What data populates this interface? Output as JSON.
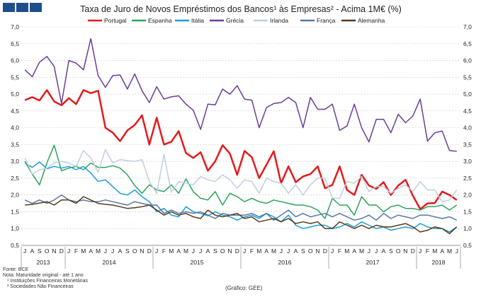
{
  "chart_data": {
    "type": "line",
    "title": "Taxa de Juro de Novos Empréstimos dos Bancos¹ às Empresas² - Acima 1M€ (%)",
    "ylim": [
      0.5,
      7.0
    ],
    "yticks": [
      "0,5",
      "1,0",
      "1,5",
      "2,0",
      "2,5",
      "3,0",
      "3,5",
      "4,0",
      "4,5",
      "5,0",
      "5,5",
      "6,0",
      "6,5",
      "7,0"
    ],
    "x": [
      "J",
      "A",
      "S",
      "O",
      "N",
      "D",
      "J",
      "F",
      "M",
      "A",
      "M",
      "J",
      "J",
      "A",
      "S",
      "O",
      "N",
      "D",
      "J",
      "F",
      "M",
      "A",
      "M",
      "J",
      "J",
      "A",
      "S",
      "O",
      "N",
      "D",
      "J",
      "F",
      "M",
      "A",
      "M",
      "J",
      "J",
      "A",
      "S",
      "O",
      "N",
      "D",
      "J",
      "F",
      "M",
      "A",
      "M",
      "J",
      "J",
      "A",
      "S",
      "O",
      "N",
      "D",
      "J",
      "F",
      "M",
      "A",
      "M",
      "J"
    ],
    "years": [
      {
        "label": "2013",
        "start": 0,
        "end": 6
      },
      {
        "label": "2014",
        "start": 6,
        "end": 18
      },
      {
        "label": "2015",
        "start": 18,
        "end": 30
      },
      {
        "label": "2016",
        "start": 30,
        "end": 42
      },
      {
        "label": "2017",
        "start": 42,
        "end": 54
      },
      {
        "label": "2018",
        "start": 54,
        "end": 60
      }
    ],
    "series": [
      {
        "name": "Portugal",
        "color": "#e31a1c",
        "width": 2.5,
        "values": [
          4.82,
          4.91,
          4.81,
          5.12,
          4.78,
          4.67,
          4.88,
          4.7,
          5.12,
          5.03,
          5.1,
          4.0,
          3.85,
          3.6,
          3.92,
          4.08,
          4.37,
          3.5,
          4.3,
          3.5,
          3.58,
          3.9,
          3.25,
          3.1,
          3.27,
          2.72,
          3.0,
          3.48,
          3.23,
          2.6,
          3.31,
          3.12,
          2.5,
          2.9,
          3.3,
          2.35,
          2.85,
          2.38,
          2.55,
          2.62,
          2.85,
          2.2,
          2.3,
          2.85,
          2.15,
          2.0,
          2.6,
          2.28,
          2.18,
          2.38,
          2.0,
          2.28,
          2.45,
          1.98,
          1.58,
          1.75,
          1.76,
          2.1,
          2.0,
          1.85
        ]
      },
      {
        "name": "Espanha",
        "color": "#2ca25f",
        "width": 1.5,
        "values": [
          3.0,
          2.62,
          2.3,
          2.95,
          3.48,
          2.72,
          2.8,
          2.85,
          2.75,
          2.95,
          2.82,
          2.82,
          2.87,
          2.8,
          2.6,
          2.28,
          2.05,
          2.3,
          2.15,
          2.1,
          2.3,
          2.05,
          2.48,
          2.1,
          1.9,
          1.85,
          2.1,
          1.7,
          2.05,
          1.95,
          1.8,
          1.9,
          1.8,
          1.75,
          1.85,
          1.8,
          1.75,
          1.7,
          1.7,
          1.65,
          1.55,
          1.3,
          1.9,
          1.7,
          1.7,
          1.4,
          1.95,
          1.7,
          1.7,
          1.5,
          1.65,
          1.7,
          1.6,
          1.6,
          1.55,
          1.65,
          1.65,
          1.7,
          1.55,
          1.7
        ]
      },
      {
        "name": "Itália",
        "color": "#1a9ed8",
        "width": 1.5,
        "values": [
          2.95,
          2.82,
          2.98,
          2.78,
          2.85,
          2.8,
          2.85,
          2.75,
          2.85,
          2.65,
          2.4,
          2.45,
          2.25,
          2.05,
          2.0,
          2.15,
          1.95,
          1.8,
          1.5,
          1.6,
          1.4,
          1.35,
          1.65,
          1.5,
          1.45,
          1.38,
          1.5,
          1.4,
          1.35,
          1.25,
          1.35,
          1.4,
          1.3,
          1.45,
          1.35,
          1.2,
          1.4,
          1.1,
          1.0,
          1.05,
          1.1,
          1.1,
          1.0,
          1.05,
          1.15,
          1.05,
          1.2,
          1.1,
          1.0,
          1.05,
          0.95,
          1.0,
          1.05,
          1.0,
          1.15,
          1.05,
          1.0,
          1.0,
          0.9,
          1.05
        ]
      },
      {
        "name": "Grécia",
        "color": "#6a3d9a",
        "width": 1.5,
        "values": [
          5.72,
          5.52,
          5.95,
          6.12,
          5.82,
          4.72,
          6.0,
          5.92,
          5.72,
          6.65,
          5.55,
          5.2,
          5.55,
          5.57,
          5.15,
          5.6,
          5.1,
          4.75,
          5.22,
          4.85,
          4.92,
          4.95,
          4.7,
          4.52,
          3.95,
          4.7,
          4.68,
          5.15,
          5.0,
          5.25,
          4.85,
          4.82,
          4.0,
          4.6,
          4.72,
          4.75,
          4.9,
          4.75,
          4.0,
          4.9,
          4.55,
          4.55,
          4.7,
          3.92,
          4.05,
          4.7,
          4.0,
          3.58,
          4.25,
          4.25,
          3.85,
          4.4,
          4.15,
          4.35,
          4.85,
          3.6,
          3.85,
          3.9,
          3.32,
          3.3
        ]
      },
      {
        "name": "Irlanda",
        "color": "#bfcfdd",
        "width": 1.5,
        "values": [
          3.1,
          2.62,
          2.75,
          2.8,
          2.95,
          3.0,
          2.95,
          2.85,
          3.32,
          3.1,
          2.68,
          3.35,
          2.95,
          3.05,
          3.02,
          3.0,
          3.05,
          2.4,
          2.05,
          3.2,
          2.08,
          2.4,
          2.35,
          2.3,
          2.55,
          2.45,
          2.4,
          2.6,
          2.45,
          2.2,
          2.45,
          2.4,
          2.05,
          2.5,
          2.4,
          2.35,
          2.05,
          2.3,
          2.0,
          2.3,
          2.5,
          2.5,
          1.9,
          1.9,
          2.4,
          2.35,
          2.55,
          2.1,
          2.25,
          2.25,
          2.05,
          2.2,
          2.3,
          2.1,
          2.4,
          2.15,
          2.15,
          1.8,
          1.85,
          2.15
        ]
      },
      {
        "name": "França",
        "color": "#5577aa",
        "width": 1.5,
        "values": [
          1.85,
          1.75,
          1.85,
          1.75,
          1.85,
          2.0,
          1.85,
          1.8,
          1.85,
          1.8,
          1.8,
          1.85,
          1.8,
          1.75,
          1.7,
          1.8,
          1.75,
          1.7,
          1.7,
          1.45,
          1.55,
          1.45,
          1.5,
          1.45,
          1.5,
          1.4,
          1.3,
          1.45,
          1.4,
          1.4,
          1.4,
          1.45,
          1.35,
          1.45,
          1.25,
          1.4,
          1.55,
          1.35,
          1.45,
          1.35,
          1.4,
          1.45,
          1.35,
          1.45,
          1.35,
          1.25,
          1.3,
          1.4,
          1.25,
          1.45,
          1.3,
          1.4,
          1.35,
          1.3,
          1.4,
          1.4,
          1.35,
          1.3,
          1.35,
          1.25
        ]
      },
      {
        "name": "Alemanha",
        "color": "#5a3a1a",
        "width": 1.5,
        "values": [
          1.7,
          1.72,
          1.76,
          1.8,
          1.7,
          1.85,
          1.85,
          1.75,
          1.95,
          1.85,
          1.75,
          1.72,
          1.7,
          1.65,
          1.6,
          1.62,
          1.65,
          1.7,
          1.55,
          1.4,
          1.5,
          1.4,
          1.45,
          1.35,
          1.3,
          1.55,
          1.4,
          1.35,
          1.4,
          1.45,
          1.3,
          1.35,
          1.2,
          1.25,
          1.3,
          1.2,
          1.3,
          1.15,
          1.2,
          1.15,
          1.2,
          1.0,
          1.0,
          1.2,
          1.1,
          1.0,
          1.1,
          1.0,
          1.1,
          1.05,
          1.05,
          1.1,
          1.15,
          1.05,
          0.9,
          0.95,
          1.05,
          1.0,
          0.85,
          1.05
        ]
      }
    ]
  },
  "notes": {
    "source": "Fonte: BCE",
    "nota": "Nota: Maturidade original - até 1 ano",
    "footnote1": "¹ Instituições Financeiras Monetárias",
    "footnote2": "² Sociedades Não Financeiras",
    "credit": "(Gráfico:  GEE)"
  }
}
